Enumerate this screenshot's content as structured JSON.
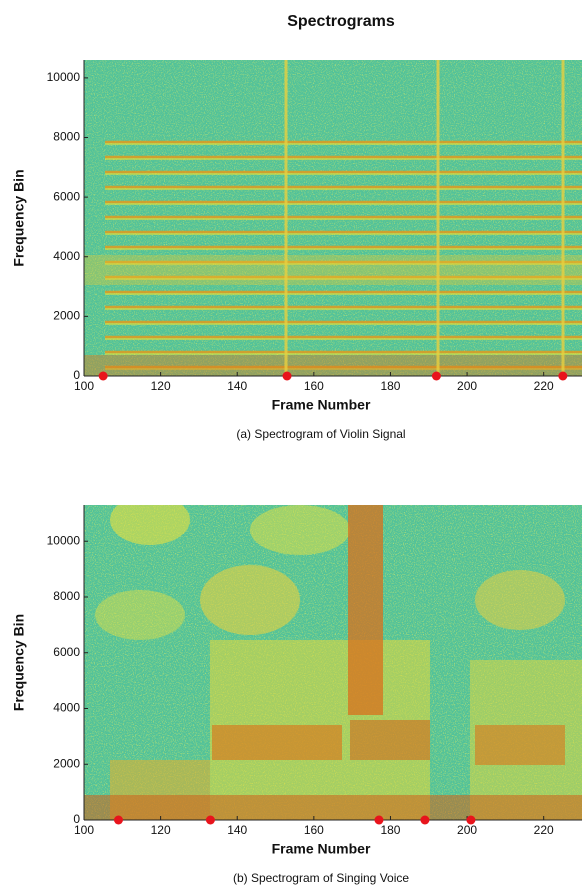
{
  "title": "Spectrograms",
  "chart_data": [
    {
      "type": "spectrogram",
      "xlabel": "Frame Number",
      "ylabel": "Frequency Bin",
      "caption": "(a) Spectrogram of Violin Signal",
      "xlim": [
        100,
        230
      ],
      "ylim": [
        0,
        10600
      ],
      "xticks": [
        100,
        120,
        140,
        160,
        180,
        200,
        220
      ],
      "yticks": [
        0,
        2000,
        4000,
        6000,
        8000,
        10000
      ],
      "x": [
        105,
        153,
        192,
        225
      ],
      "values": [
        0,
        0,
        0,
        0
      ],
      "color": "#e8141c"
    },
    {
      "type": "spectrogram",
      "xlabel": "Frame Number",
      "ylabel": "Frequency Bin",
      "caption": "(b) Spectrogram of Singing Voice",
      "xlim": [
        100,
        230
      ],
      "ylim": [
        0,
        11300
      ],
      "xticks": [
        100,
        120,
        140,
        160,
        180,
        200,
        220
      ],
      "yticks": [
        0,
        2000,
        4000,
        6000,
        8000,
        10000
      ],
      "x": [
        109,
        133,
        177,
        189,
        201
      ],
      "values": [
        0,
        0,
        0,
        0,
        0
      ],
      "color": "#e8141c"
    }
  ]
}
